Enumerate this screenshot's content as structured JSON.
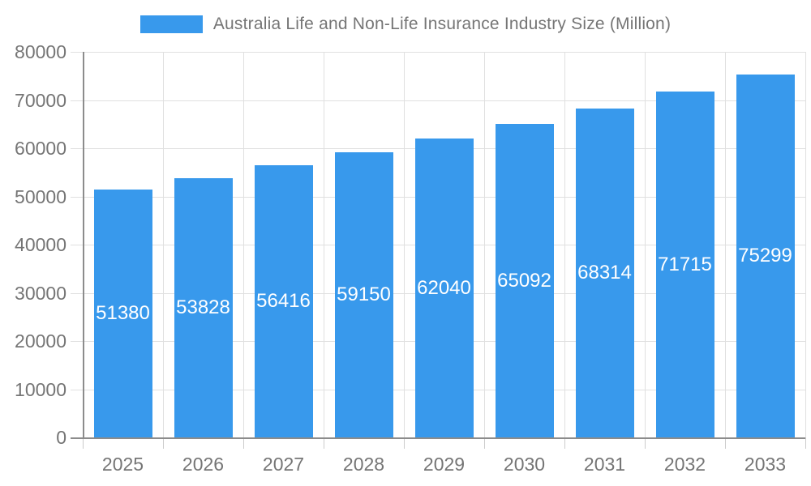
{
  "legend": {
    "label": "Australia Life and Non-Life Insurance Industry Size (Million)"
  },
  "chart_data": {
    "type": "bar",
    "title": "Australia Life and Non-Life Insurance Industry Size (Million)",
    "categories": [
      "2025",
      "2026",
      "2027",
      "2028",
      "2029",
      "2030",
      "2031",
      "2032",
      "2033"
    ],
    "values": [
      51380,
      53828,
      56416,
      59150,
      62040,
      65092,
      68314,
      71715,
      75299
    ],
    "value_labels": [
      "51380",
      "53828",
      "56416",
      "59150",
      "62040",
      "65092",
      "68314",
      "71715",
      "75299"
    ],
    "xlabel": "",
    "ylabel": "",
    "ylim": [
      0,
      80000
    ],
    "yticks": [
      0,
      10000,
      20000,
      30000,
      40000,
      50000,
      60000,
      70000,
      80000
    ],
    "ytick_labels": [
      "0",
      "10000",
      "20000",
      "30000",
      "40000",
      "50000",
      "60000",
      "70000",
      "80000"
    ],
    "grid": "horizontal gridlines at each ytick, vertical gridlines at category boundaries",
    "legend_position": "top-center",
    "value_label_position": "centered inside bar, white text",
    "colors": {
      "bar": "#3899ec",
      "axis_text": "#757575",
      "gridline": "#e0e0e0",
      "axis_line": "#8c8c8c",
      "x_tick": "#cccccc",
      "value_label": "#ffffff",
      "background": "#ffffff"
    }
  }
}
